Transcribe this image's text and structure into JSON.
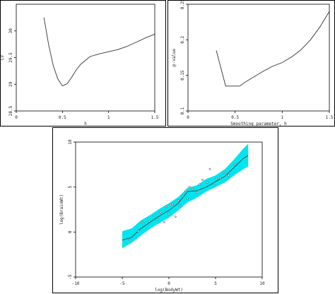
{
  "chart_data": [
    {
      "type": "line",
      "xlabel": "h",
      "ylabel": "CV",
      "xlim": [
        0,
        1.5
      ],
      "ylim": [
        28.5,
        30.5
      ],
      "xticks": [
        "0",
        "0.5",
        "1",
        "1.5"
      ],
      "yticks": [
        "28.5",
        "29",
        "29.5",
        "30"
      ],
      "series": [
        {
          "x": [
            0.3,
            0.35,
            0.4,
            0.45,
            0.5,
            0.55,
            0.6,
            0.65,
            0.7,
            0.8,
            0.9,
            1.0,
            1.1,
            1.2,
            1.3,
            1.4,
            1.5
          ],
          "y": [
            30.25,
            29.75,
            29.35,
            29.1,
            28.97,
            29.01,
            29.13,
            29.27,
            29.38,
            29.52,
            29.57,
            29.61,
            29.65,
            29.71,
            29.79,
            29.87,
            29.94
          ]
        }
      ]
    },
    {
      "type": "line",
      "xlabel": "Smoothing parameter, h",
      "ylabel": "p-value",
      "xlim": [
        0,
        1.5
      ],
      "ylim": [
        0.1,
        0.25
      ],
      "xticks": [
        "0",
        "0.5",
        "1",
        "1.5"
      ],
      "yticks": [
        "0.1",
        "0.15",
        "0.2",
        "0.25"
      ],
      "series": [
        {
          "x": [
            0.3,
            0.4,
            0.5,
            0.55,
            0.6,
            0.7,
            0.8,
            0.9,
            1.0,
            1.1,
            1.2,
            1.3,
            1.4,
            1.5
          ],
          "y": [
            0.185,
            0.135,
            0.135,
            0.135,
            0.14,
            0.148,
            0.156,
            0.163,
            0.168,
            0.176,
            0.186,
            0.2,
            0.218,
            0.24
          ]
        }
      ]
    },
    {
      "type": "scatter",
      "xlabel": "log(BodyWt)",
      "ylabel": "log(BrainWt)",
      "xlim": [
        -10,
        10
      ],
      "ylim": [
        -5,
        10
      ],
      "xticks": [
        "-10",
        "-5",
        "0",
        "5",
        "10"
      ],
      "yticks": [
        "-5",
        "0",
        "5",
        "10"
      ],
      "band_color": "#00e5ee",
      "band": {
        "x": [
          -5,
          -4,
          -3,
          -2,
          -1,
          0,
          1,
          2,
          3,
          4,
          5,
          6,
          7,
          8,
          8.5
        ],
        "lower": [
          -1.8,
          -1.2,
          -0.4,
          0.4,
          1.0,
          1.6,
          2.4,
          3.3,
          3.8,
          4.5,
          5.0,
          5.5,
          6.3,
          7.0,
          7.3
        ],
        "upper": [
          0.1,
          0.4,
          1.3,
          1.9,
          2.6,
          3.2,
          3.9,
          4.9,
          5.2,
          5.9,
          6.3,
          7.0,
          8.1,
          9.3,
          9.8
        ]
      },
      "fit": {
        "x": [
          -5,
          -4,
          -3,
          -2,
          -1,
          0,
          1,
          2,
          3,
          4,
          5,
          6,
          7,
          8,
          8.5
        ],
        "y": [
          -0.9,
          -0.6,
          0.4,
          1.1,
          1.8,
          2.4,
          3.2,
          4.5,
          4.6,
          5.0,
          5.6,
          6.2,
          7.2,
          8.2,
          8.5
        ]
      },
      "points": {
        "x": [
          -4.2,
          -3.3,
          -2.8,
          -2.1,
          -1.6,
          -1.2,
          -0.9,
          -0.5,
          -0.3,
          0.0,
          0.2,
          0.4,
          0.7,
          1.0,
          1.2,
          1.5,
          1.8,
          2.0,
          2.2,
          2.5,
          3.0,
          3.3,
          3.6,
          4.1,
          4.4,
          4.8,
          5.1,
          5.5,
          5.9,
          6.4,
          7.1
        ],
        "y": [
          -0.9,
          0.1,
          1.0,
          1.2,
          1.8,
          1.4,
          2.2,
          1.1,
          2.8,
          2.0,
          3.0,
          3.1,
          1.7,
          3.5,
          2.9,
          4.0,
          4.6,
          3.7,
          5.0,
          4.8,
          4.4,
          5.3,
          5.8,
          5.5,
          7.0,
          5.2,
          5.9,
          6.0,
          6.6,
          6.3,
          7.5
        ]
      }
    }
  ]
}
